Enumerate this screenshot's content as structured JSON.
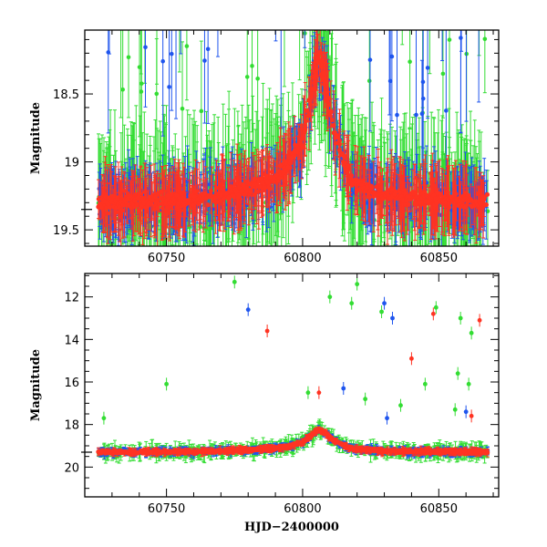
{
  "chart_data": [
    {
      "type": "scatter",
      "title": "",
      "xlabel": "",
      "ylabel": "Magnitude",
      "xlim": [
        60720,
        60872
      ],
      "ylim": [
        19.62,
        18.03
      ],
      "y_inverted": true,
      "grid": false,
      "legend": "none",
      "x_ticks": [
        60750,
        60800,
        60850
      ],
      "x_tick_labels": [
        "60750",
        "60800",
        "60850"
      ],
      "y_ticks": [
        18.5,
        19,
        19.5
      ],
      "y_tick_labels": [
        "18.5",
        "19",
        "19.5"
      ],
      "reference_line_y": 19.35,
      "colors": {
        "green": "#33dd33",
        "blue": "#1f55ee",
        "red": "#ff3322"
      },
      "description_baseline": [
        [
          60725,
          19.3
        ],
        [
          60760,
          19.28
        ],
        [
          60780,
          19.2
        ],
        [
          60792,
          19.1
        ],
        [
          60800,
          18.85
        ],
        [
          60806,
          18.2
        ],
        [
          60812,
          18.8
        ],
        [
          60818,
          19.15
        ],
        [
          60830,
          19.25
        ],
        [
          60850,
          19.28
        ],
        [
          60868,
          19.3
        ]
      ]
    },
    {
      "type": "scatter",
      "title": "",
      "xlabel": "HJD−2400000",
      "ylabel": "Magnitude",
      "xlim": [
        60720,
        60872
      ],
      "ylim": [
        21.4,
        10.9
      ],
      "y_inverted": true,
      "grid": false,
      "legend": "none",
      "x_ticks": [
        60750,
        60800,
        60850
      ],
      "x_tick_labels": [
        "60750",
        "60800",
        "60850"
      ],
      "y_ticks": [
        12,
        14,
        16,
        18,
        20
      ],
      "y_tick_labels": [
        "12",
        "14",
        "16",
        "18",
        "20"
      ],
      "reference_line_y": 19.3,
      "colors": {
        "green": "#33dd33",
        "blue": "#1f55ee",
        "red": "#ff3322"
      },
      "outliers": {
        "green": [
          [
            60775,
            11.3
          ],
          [
            60810,
            12.0
          ],
          [
            60818,
            12.3
          ],
          [
            60820,
            11.4
          ],
          [
            60829,
            12.7
          ],
          [
            60849,
            12.5
          ],
          [
            60858,
            13.0
          ],
          [
            60862,
            13.7
          ],
          [
            60750,
            16.1
          ],
          [
            60802,
            16.5
          ],
          [
            60823,
            16.8
          ],
          [
            60845,
            16.1
          ],
          [
            60836,
            17.1
          ],
          [
            60857,
            15.6
          ],
          [
            60861,
            16.1
          ],
          [
            60727,
            17.7
          ],
          [
            60856,
            17.3
          ]
        ],
        "blue": [
          [
            60780,
            12.6
          ],
          [
            60830,
            12.3
          ],
          [
            60833,
            13.0
          ],
          [
            60815,
            16.3
          ],
          [
            60831,
            17.7
          ],
          [
            60860,
            17.4
          ]
        ],
        "red": [
          [
            60787,
            13.6
          ],
          [
            60848,
            12.8
          ],
          [
            60865,
            13.1
          ],
          [
            60840,
            14.9
          ],
          [
            60806,
            16.5
          ],
          [
            60862,
            17.6
          ]
        ]
      }
    }
  ]
}
